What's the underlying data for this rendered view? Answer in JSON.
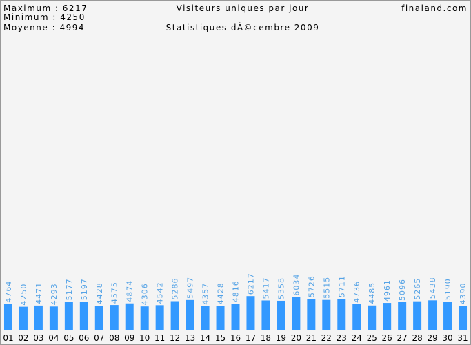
{
  "chart_data": {
    "type": "bar",
    "title": "Visiteurs uniques par jour",
    "subtitle": "Statistiques dÃ©cembre 2009",
    "site": "finaland.com",
    "stats": [
      "Maximum : 6217",
      "Minimum : 4250",
      "Moyenne : 4994"
    ],
    "categories": [
      "01",
      "02",
      "03",
      "04",
      "05",
      "06",
      "07",
      "08",
      "09",
      "10",
      "11",
      "12",
      "13",
      "14",
      "15",
      "16",
      "17",
      "18",
      "19",
      "20",
      "21",
      "22",
      "23",
      "24",
      "25",
      "26",
      "27",
      "28",
      "29",
      "30",
      "31"
    ],
    "values": [
      4764,
      4250,
      4471,
      4293,
      5177,
      5197,
      4428,
      4575,
      4874,
      4306,
      4542,
      5286,
      5497,
      4357,
      4428,
      4816,
      6217,
      5417,
      5358,
      6034,
      5726,
      5515,
      5711,
      4736,
      4485,
      4961,
      5096,
      5265,
      5438,
      5190,
      4390
    ],
    "color": "#3399ff",
    "ylim": [
      0,
      60000
    ]
  }
}
